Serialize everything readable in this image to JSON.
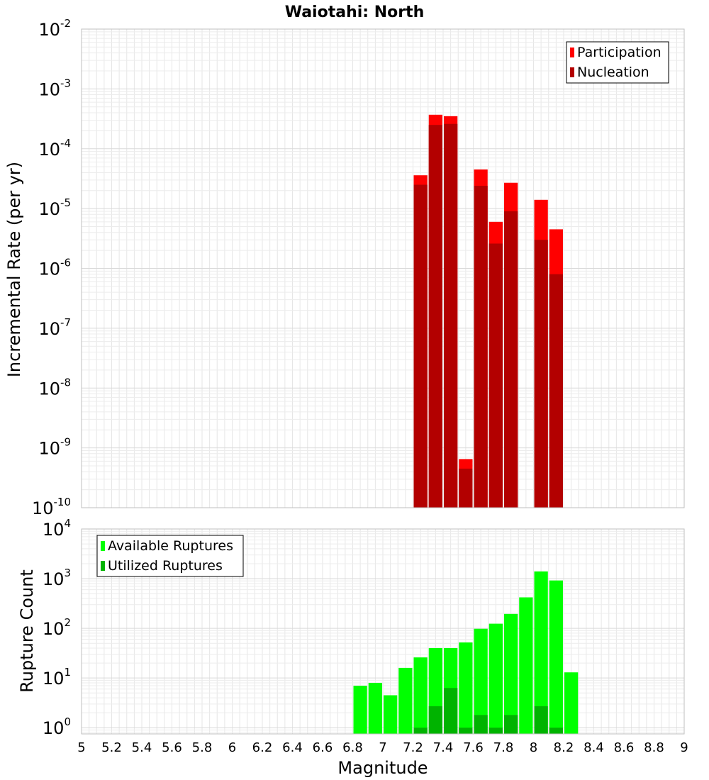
{
  "chart_data": [
    {
      "type": "bar",
      "title": "Waiotahi: North",
      "xlabel": "",
      "ylabel": "Incremental Rate (per yr)",
      "yscale": "log",
      "ylim": [
        1e-10,
        0.01
      ],
      "xlim": [
        5,
        9
      ],
      "bin_width": 0.1,
      "grid": true,
      "legend_position": "top-right",
      "y_ticks": [
        {
          "base": "10",
          "exp": "-10"
        },
        {
          "base": "10",
          "exp": "-9"
        },
        {
          "base": "10",
          "exp": "-8"
        },
        {
          "base": "10",
          "exp": "-7"
        },
        {
          "base": "10",
          "exp": "-6"
        },
        {
          "base": "10",
          "exp": "-5"
        },
        {
          "base": "10",
          "exp": "-4"
        },
        {
          "base": "10",
          "exp": "-3"
        },
        {
          "base": "10",
          "exp": "-2"
        }
      ],
      "x": [
        7.25,
        7.35,
        7.45,
        7.55,
        7.65,
        7.75,
        7.85,
        7.95,
        8.05,
        8.15
      ],
      "series": [
        {
          "name": "Participation",
          "color": "#ff0000",
          "values": [
            3.6e-05,
            0.00037,
            0.00035,
            6.5e-10,
            4.5e-05,
            6e-06,
            2.7e-05,
            null,
            1.4e-05,
            4.5e-06
          ]
        },
        {
          "name": "Nucleation",
          "color": "#b30000",
          "values": [
            2.5e-05,
            0.00025,
            0.00026,
            4.5e-10,
            2.4e-05,
            2.6e-06,
            9e-06,
            null,
            3e-06,
            8e-07
          ]
        }
      ]
    },
    {
      "type": "bar",
      "title": "",
      "xlabel": "Magnitude",
      "ylabel": "Rupture Count",
      "yscale": "log",
      "ylim": [
        0.75,
        10000
      ],
      "xlim": [
        5,
        9
      ],
      "bin_width": 0.1,
      "grid": true,
      "legend_position": "top-left",
      "y_ticks": [
        {
          "value": 1,
          "base": "10",
          "exp": "0"
        },
        {
          "value": 10,
          "base": "10",
          "exp": "1"
        },
        {
          "value": 100,
          "base": "10",
          "exp": "2"
        },
        {
          "value": 1000,
          "base": "10",
          "exp": "3"
        },
        {
          "value": 10000,
          "base": "10",
          "exp": "4"
        }
      ],
      "x_tick_labels": [
        "5",
        "5.2",
        "5.4",
        "5.6",
        "5.8",
        "6",
        "6.2",
        "6.4",
        "6.6",
        "6.8",
        "7",
        "7.2",
        "7.4",
        "7.6",
        "7.8",
        "8",
        "8.2",
        "8.4",
        "8.6",
        "8.8",
        "9"
      ],
      "x": [
        6.85,
        6.95,
        7.05,
        7.15,
        7.25,
        7.35,
        7.45,
        7.55,
        7.65,
        7.75,
        7.85,
        7.95,
        8.05,
        8.15,
        8.25
      ],
      "series": [
        {
          "name": "Available Ruptures",
          "color": "#00ff00",
          "values": [
            7,
            8,
            4.5,
            16,
            26,
            40,
            40,
            52,
            98,
            124,
            195,
            420,
            1400,
            920,
            13
          ]
        },
        {
          "name": "Utilized Ruptures",
          "color": "#00b300",
          "values": [
            null,
            null,
            null,
            null,
            1,
            2.7,
            6.3,
            1,
            1.8,
            1,
            1.8,
            null,
            2.7,
            1,
            null
          ]
        }
      ]
    }
  ]
}
